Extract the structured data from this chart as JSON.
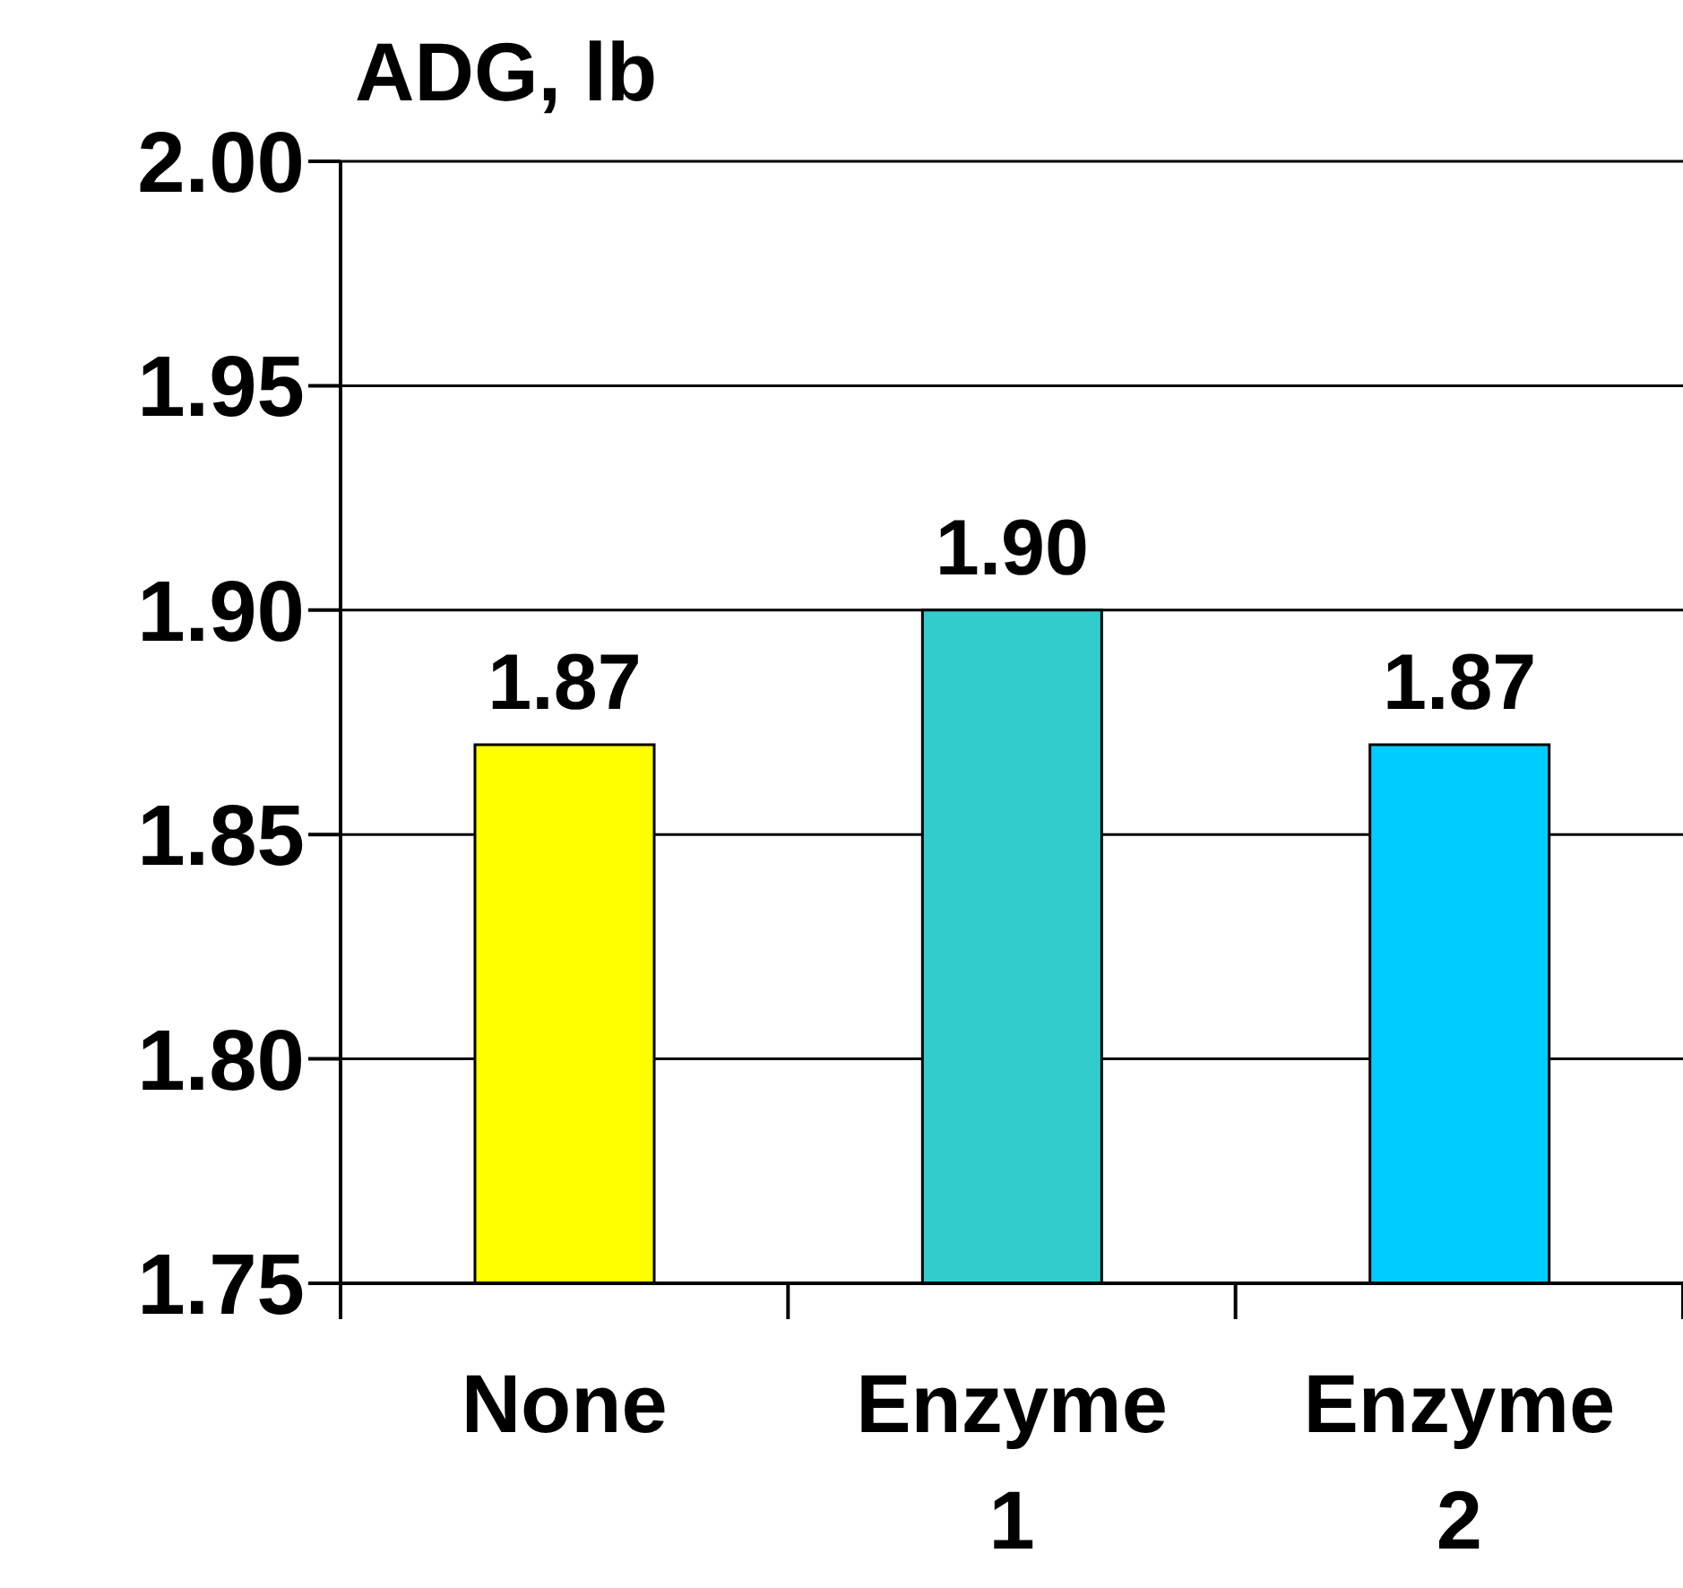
{
  "chart_data": {
    "type": "bar",
    "title": "ADG, lb",
    "categories": [
      "None",
      "Enzyme 1",
      "Enzyme 2"
    ],
    "values": [
      1.87,
      1.9,
      1.87
    ],
    "value_labels": [
      "1.87",
      "1.90",
      "1.87"
    ],
    "colors": [
      "#ffff00",
      "#33cccc",
      "#00ccff"
    ],
    "ylim": [
      1.75,
      2.0
    ],
    "yticks": [
      {
        "value": 2.0,
        "label": "2.00"
      },
      1.95,
      {
        "value": 1.9,
        "label": "1.90"
      },
      1.85,
      {
        "value": 1.8,
        "label": "1.80"
      },
      1.75
    ],
    "grid": "y",
    "legend": false
  }
}
